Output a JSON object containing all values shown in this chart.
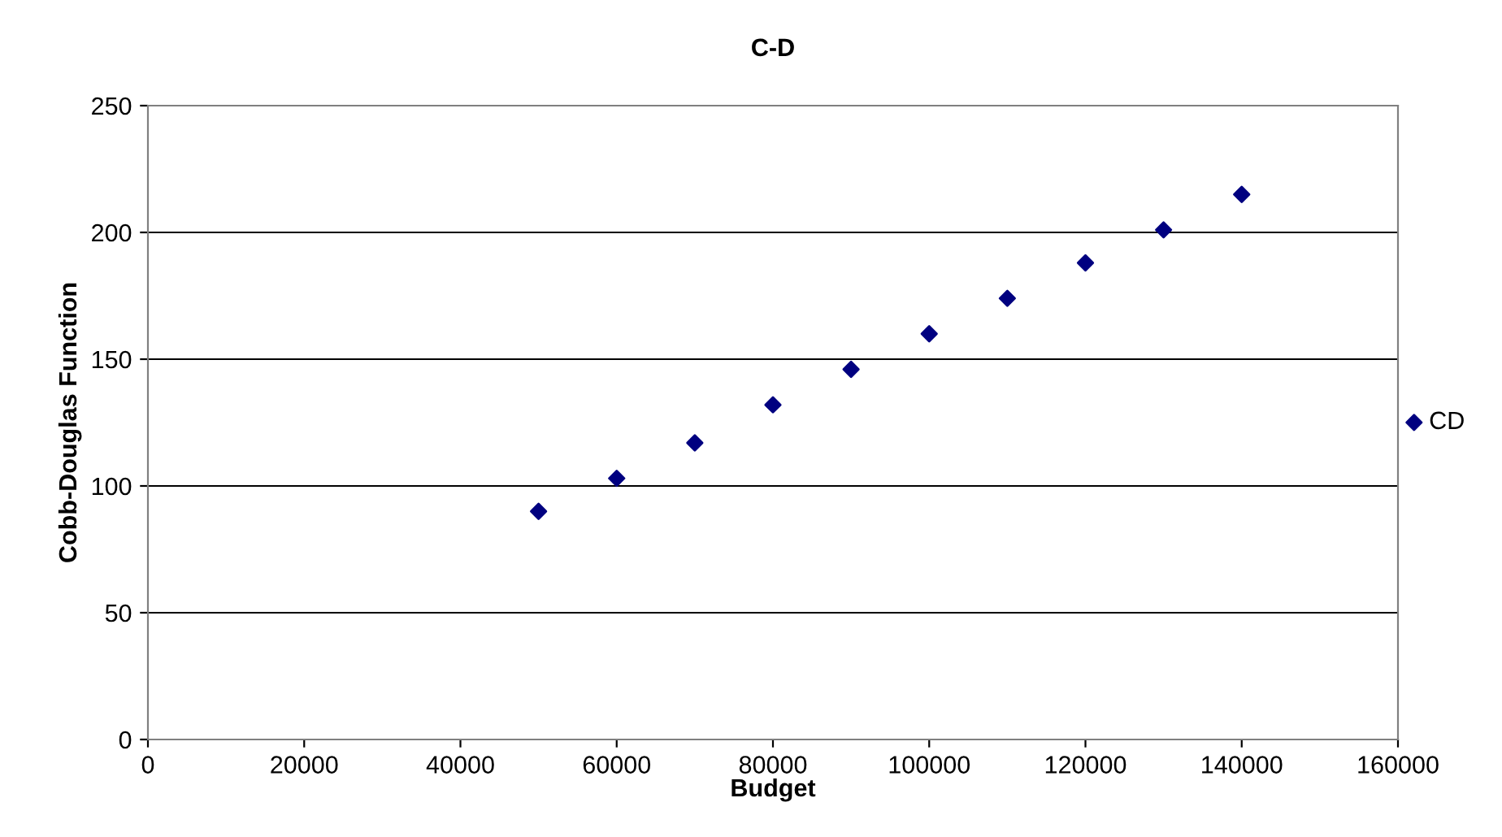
{
  "chart_data": {
    "type": "scatter",
    "title": "C-D",
    "xlabel": "Budget",
    "ylabel": "Cobb-Douglas Function",
    "x": [
      50000,
      60000,
      70000,
      80000,
      90000,
      100000,
      110000,
      120000,
      130000,
      140000
    ],
    "series": [
      {
        "name": "CD",
        "color": "#000080",
        "values": [
          90,
          103,
          117,
          132,
          146,
          160,
          174,
          188,
          201,
          215
        ]
      }
    ],
    "xlim": [
      0,
      160000
    ],
    "xticks": [
      0,
      20000,
      40000,
      60000,
      80000,
      100000,
      120000,
      140000,
      160000
    ],
    "ylim": [
      0,
      250
    ],
    "yticks": [
      0,
      50,
      100,
      150,
      200,
      250
    ],
    "grid": "y",
    "legend": "right",
    "marker": "diamond"
  }
}
